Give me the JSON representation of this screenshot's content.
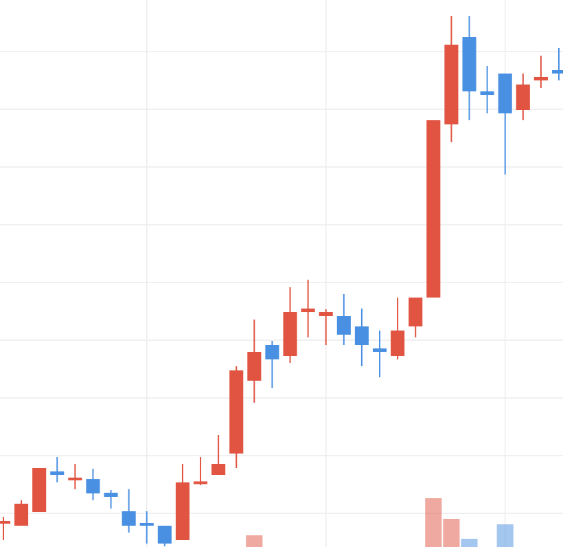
{
  "chart_data": {
    "type": "candlestick",
    "x": [
      0,
      1,
      2,
      3,
      4,
      5,
      6,
      7,
      8,
      9,
      10,
      11,
      12,
      13,
      14,
      15,
      16,
      17,
      18,
      19,
      20,
      21,
      22,
      23,
      24,
      25,
      26,
      27,
      28,
      29,
      30,
      31
    ],
    "open": [
      -1.67,
      -2.14,
      0.24,
      7.26,
      5.83,
      5.95,
      3.57,
      0.36,
      -1.67,
      -2.14,
      -4.64,
      5.12,
      6.67,
      10.36,
      22.98,
      29.17,
      27.26,
      34.88,
      34.17,
      34.17,
      32.38,
      28.57,
      27.26,
      32.38,
      37.38,
      67.38,
      82.5,
      73.1,
      76.19,
      69.88,
      75.0,
      76.79
    ],
    "high": [
      -0.6,
      2.26,
      7.86,
      9.76,
      8.57,
      7.74,
      4.05,
      4.17,
      0.36,
      -2.14,
      8.57,
      9.76,
      13.57,
      25.48,
      33.57,
      29.88,
      39.17,
      40.48,
      35.36,
      37.98,
      35.48,
      31.67,
      37.38,
      37.38,
      68.1,
      86.19,
      86.19,
      77.5,
      76.19,
      76.19,
      79.29,
      80.6
    ],
    "low": [
      -4.64,
      -2.14,
      0.24,
      5.36,
      4.17,
      2.26,
      0.83,
      -3.33,
      -5.24,
      -5.71,
      -4.64,
      4.88,
      6.67,
      7.86,
      19.17,
      21.67,
      26.07,
      30.48,
      29.17,
      29.17,
      25.48,
      23.57,
      26.67,
      30.48,
      37.38,
      64.29,
      68.1,
      69.29,
      58.69,
      68.1,
      73.69,
      75.0
    ],
    "close": [
      -1.43,
      1.67,
      7.86,
      6.67,
      6.07,
      3.45,
      2.86,
      -2.14,
      -2.14,
      -5.24,
      5.36,
      5.48,
      8.57,
      24.76,
      27.98,
      26.67,
      34.88,
      35.48,
      34.88,
      30.95,
      29.17,
      27.98,
      31.67,
      37.38,
      68.1,
      81.19,
      73.1,
      72.5,
      69.29,
      74.29,
      75.6,
      76.19
    ],
    "volume": [
      null,
      null,
      null,
      null,
      null,
      null,
      null,
      null,
      null,
      null,
      null,
      null,
      null,
      null,
      17,
      null,
      null,
      null,
      null,
      null,
      null,
      null,
      null,
      null,
      71,
      41,
      12,
      null,
      33,
      null,
      null,
      null
    ],
    "up_color": "#e05441",
    "down_color": "#4a90e2",
    "xlim": [
      -0.19,
      31.23
    ],
    "xticks": [
      8,
      18,
      28
    ],
    "ylim": [
      -5.83,
      88.93
    ],
    "yticks": [
      0,
      10,
      20,
      30,
      40,
      50,
      60,
      70,
      80
    ],
    "y2lim": [
      0,
      796
    ],
    "grid": true
  }
}
